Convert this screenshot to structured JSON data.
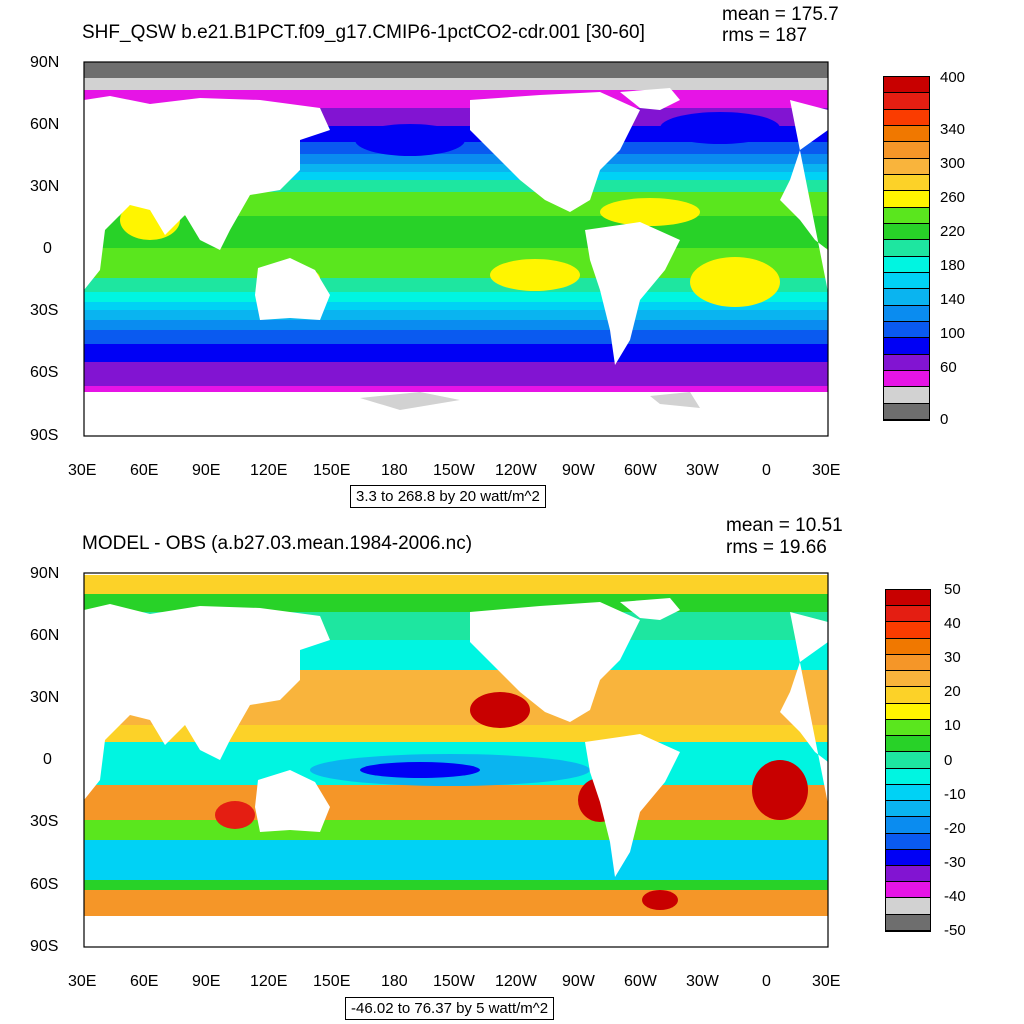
{
  "panels": [
    {
      "title": "SHF_QSW b.e21.B1PCT.f09_g17.CMIP6-1pctCO2-cdr.001 [30-60]",
      "mean": "mean = 175.7",
      "rms": "rms = 187",
      "range_info": "3.3 to 268.8 by 20 watt/m^2",
      "lat_labels": [
        "90N",
        "60N",
        "30N",
        "0",
        "30S",
        "60S",
        "90S"
      ],
      "lon_labels": [
        "30E",
        "60E",
        "90E",
        "120E",
        "150E",
        "180",
        "150W",
        "120W",
        "90W",
        "60W",
        "30W",
        "0",
        "30E"
      ],
      "colorbar": {
        "labels": [
          "400",
          "340",
          "300",
          "260",
          "220",
          "180",
          "140",
          "100",
          "60",
          "0"
        ],
        "colors": [
          "#c80000",
          "#e41e12",
          "#fa3c00",
          "#f07800",
          "#f59628",
          "#f9b43c",
          "#fcd228",
          "#fff500",
          "#5ae61e",
          "#28d228",
          "#1ee6a0",
          "#00f5e1",
          "#00d2f5",
          "#0ab4f0",
          "#0a8cf0",
          "#0a5af0",
          "#0000f5",
          "#8214d2",
          "#e614e6",
          "#d2d2d2",
          "#6e6e6e"
        ]
      }
    },
    {
      "title": "MODEL - OBS (a.b27.03.mean.1984-2006.nc)",
      "mean": "mean = 10.51",
      "rms": "rms = 19.66",
      "range_info": "-46.02 to 76.37 by 5 watt/m^2",
      "lat_labels": [
        "90N",
        "60N",
        "30N",
        "0",
        "30S",
        "60S",
        "90S"
      ],
      "lon_labels": [
        "30E",
        "60E",
        "90E",
        "120E",
        "150E",
        "180",
        "150W",
        "120W",
        "90W",
        "60W",
        "30W",
        "0",
        "30E"
      ],
      "colorbar": {
        "labels": [
          "50",
          "40",
          "30",
          "20",
          "10",
          "0",
          "-10",
          "-20",
          "-30",
          "-40",
          "-50"
        ],
        "colors": [
          "#c80000",
          "#e41e12",
          "#fa3c00",
          "#f07800",
          "#f59628",
          "#f9b43c",
          "#fcd228",
          "#fff500",
          "#5ae61e",
          "#28d228",
          "#1ee6a0",
          "#00f5e1",
          "#00d2f5",
          "#0ab4f0",
          "#0a8cf0",
          "#0a5af0",
          "#0000f5",
          "#8214d2",
          "#e614e6",
          "#d2d2d2",
          "#6e6e6e"
        ]
      }
    }
  ]
}
